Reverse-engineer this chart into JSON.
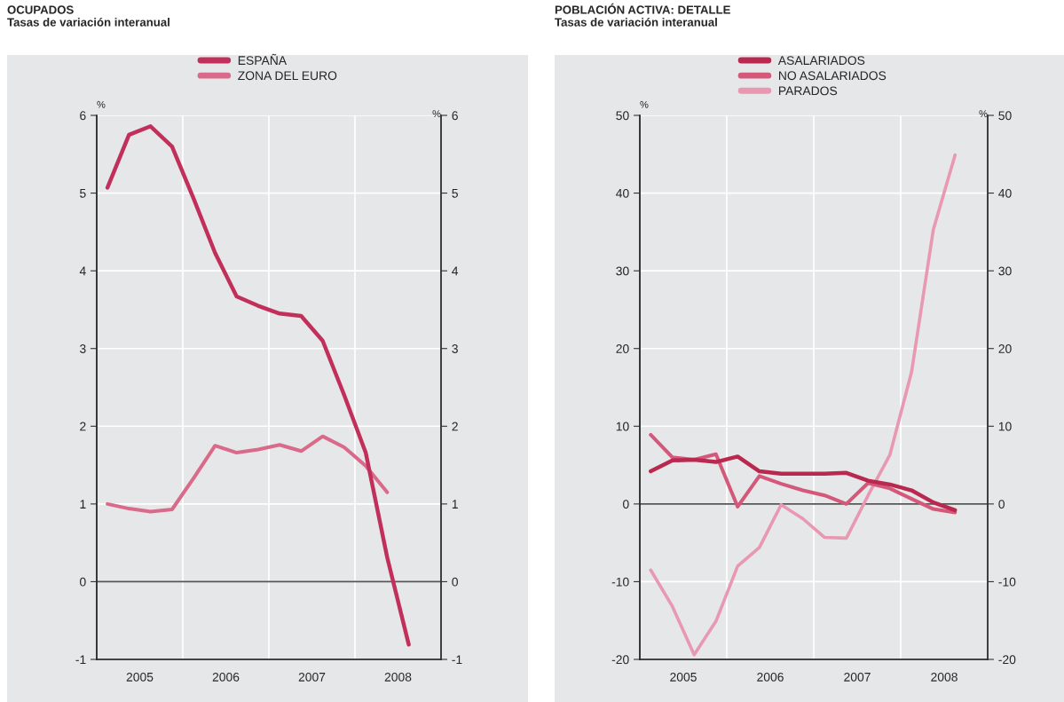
{
  "chart_data": [
    {
      "type": "line",
      "title": "OCUPADOS",
      "subtitle": "Tasas de variación interanual",
      "ylabel": "%",
      "y2label": "%",
      "x": [
        2005.125,
        2005.375,
        2005.625,
        2005.875,
        2006.125,
        2006.375,
        2006.625,
        2006.875,
        2007.125,
        2007.375,
        2007.625,
        2007.875,
        2008.125,
        2008.375,
        2008.625
      ],
      "series": [
        {
          "name": "ESPAÑA",
          "color": "#c0305a",
          "values": [
            5.07,
            5.75,
            5.86,
            5.6,
            4.93,
            4.23,
            3.67,
            3.55,
            3.45,
            3.42,
            3.1,
            2.4,
            1.66,
            0.31,
            -0.81
          ]
        },
        {
          "name": "ZONA DEL EURO",
          "color": "#d96a8a",
          "values": [
            1.0,
            0.94,
            0.9,
            0.93,
            1.33,
            1.75,
            1.66,
            1.7,
            1.76,
            1.68,
            1.87,
            1.73,
            1.49,
            1.15,
            null
          ]
        }
      ],
      "xlim": [
        2005,
        2009
      ],
      "xticks": [
        {
          "value": 2005.5,
          "label": "2005"
        },
        {
          "value": 2006,
          "label": null
        },
        {
          "value": 2006.5,
          "label": "2006"
        },
        {
          "value": 2007,
          "label": null
        },
        {
          "value": 2007.5,
          "label": "2007"
        },
        {
          "value": 2008,
          "label": null
        },
        {
          "value": 2008.5,
          "label": "2008"
        }
      ],
      "ylim": [
        -1,
        6
      ],
      "yticks": [
        -1,
        0,
        1,
        2,
        3,
        4,
        5,
        6
      ],
      "y2lim": [
        -1,
        6
      ],
      "y2ticks": [
        -1,
        0,
        1,
        2,
        3,
        4,
        5,
        6
      ],
      "ref_lines": [
        {
          "axis": "y",
          "value": 0,
          "color": "#555555"
        }
      ],
      "grid": true,
      "legend": "top",
      "marker": "none",
      "line_style": "solid"
    },
    {
      "type": "line",
      "title": "POBLACIÓN ACTIVA: DETALLE",
      "subtitle": "Tasas de variación interanual",
      "ylabel": "%",
      "y2label": "%",
      "x": [
        2005.125,
        2005.375,
        2005.625,
        2005.875,
        2006.125,
        2006.375,
        2006.625,
        2006.875,
        2007.125,
        2007.375,
        2007.625,
        2007.875,
        2008.125,
        2008.375,
        2008.625
      ],
      "series": [
        {
          "name": "ASALARIADOS",
          "color": "#b8284f",
          "values": [
            4.2,
            5.6,
            5.7,
            5.4,
            6.1,
            4.2,
            3.9,
            3.9,
            3.9,
            4.0,
            3.0,
            2.5,
            1.75,
            0.2,
            -0.8
          ]
        },
        {
          "name": "NO ASALARIADOS",
          "color": "#d4587a",
          "values": [
            8.9,
            6.0,
            5.7,
            6.4,
            -0.35,
            3.6,
            2.6,
            1.75,
            1.1,
            0.0,
            2.7,
            2.0,
            0.65,
            -0.65,
            -1.1
          ]
        },
        {
          "name": "PARADOS",
          "color": "#e898b0",
          "values": [
            -8.5,
            -13.2,
            -19.4,
            -15.1,
            -8.0,
            -5.6,
            -0.1,
            -1.9,
            -4.3,
            -4.4,
            1.1,
            6.3,
            17.0,
            35.3,
            44.9
          ]
        }
      ],
      "xlim": [
        2005,
        2009
      ],
      "xticks": [
        {
          "value": 2005.5,
          "label": "2005"
        },
        {
          "value": 2006,
          "label": null
        },
        {
          "value": 2006.5,
          "label": "2006"
        },
        {
          "value": 2007,
          "label": null
        },
        {
          "value": 2007.5,
          "label": "2007"
        },
        {
          "value": 2008,
          "label": null
        },
        {
          "value": 2008.5,
          "label": "2008"
        }
      ],
      "ylim": [
        -20,
        50
      ],
      "yticks": [
        -20,
        -10,
        0,
        10,
        20,
        30,
        40,
        50
      ],
      "y2lim": [
        -20,
        50
      ],
      "y2ticks": [
        -20,
        -10,
        0,
        10,
        20,
        30,
        40,
        50
      ],
      "ref_lines": [
        {
          "axis": "y",
          "value": 0,
          "color": "#555555"
        }
      ],
      "grid": true,
      "legend": "top",
      "marker": "none",
      "line_style": "solid"
    }
  ]
}
